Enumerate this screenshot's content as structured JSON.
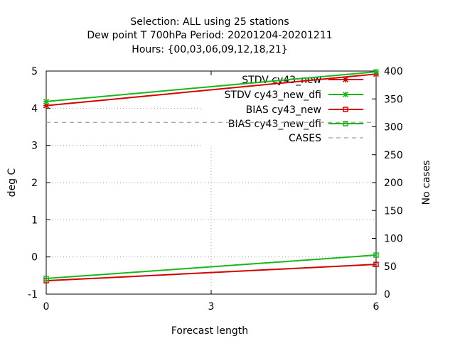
{
  "title_lines": [
    "Selection: ALL using    25 stations",
    "Dew point T 700hPa   Period: 20201204-20201211",
    "Hours: {00,03,06,09,12,18,21}"
  ],
  "chart_data": {
    "type": "line",
    "title": "Selection: ALL using    25 stations / Dew point T 700hPa   Period: 20201204-20201211 / Hours: {00,03,06,09,12,18,21}",
    "xlabel": "Forecast length",
    "ylabel": "deg C",
    "y2label": "No cases",
    "x": [
      0,
      6
    ],
    "xlim": [
      0,
      6
    ],
    "ylim": [
      -1,
      5
    ],
    "y2lim": [
      0,
      400
    ],
    "xticks": [
      "0",
      "3",
      "6"
    ],
    "yticks": [
      "-1",
      "0",
      "1",
      "2",
      "3",
      "4",
      "5"
    ],
    "y2ticks": [
      "0",
      "50",
      "100",
      "150",
      "200",
      "250",
      "300",
      "350",
      "400"
    ],
    "grid": true,
    "legend_position": "top-right",
    "series": [
      {
        "name": "STDV cy43_new",
        "axis": "y",
        "values": [
          4.07,
          4.92
        ],
        "color": "#d40000",
        "marker": "x"
      },
      {
        "name": "STDV cy43_new_dfi",
        "axis": "y",
        "values": [
          4.18,
          4.98
        ],
        "color": "#18b818",
        "marker": "x"
      },
      {
        "name": "BIAS cy43_new",
        "axis": "y",
        "values": [
          -0.64,
          -0.2
        ],
        "color": "#d40000",
        "marker": "square"
      },
      {
        "name": "BIAS cy43_new_dfi",
        "axis": "y",
        "values": [
          -0.58,
          0.05
        ],
        "color": "#18b818",
        "marker": "square"
      },
      {
        "name": "CASES",
        "axis": "y2",
        "values": [
          308,
          308
        ],
        "color": "#a0a0a0",
        "dash": "dashed"
      }
    ]
  }
}
